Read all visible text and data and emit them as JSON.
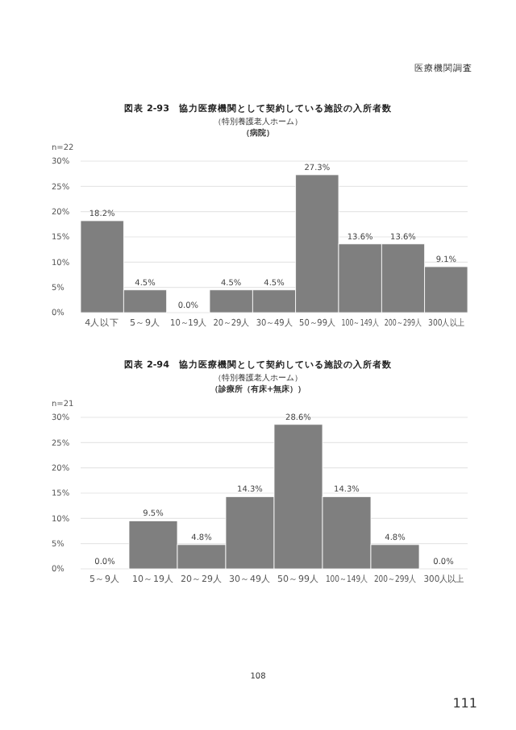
{
  "chart_data": [
    {
      "type": "bar",
      "title": "図表 2-93　協力医療機関として契約している施設の入所者数",
      "subtitle": "（特別養護老人ホーム）",
      "categories": [
        "4人以下",
        "5～9人",
        "10～19人",
        "20～29人",
        "30～49人",
        "50～99人",
        "100～149人",
        "200～299人",
        "300人以上"
      ],
      "values": [
        18.2,
        4.5,
        0.0,
        4.5,
        4.5,
        27.3,
        13.6,
        13.6,
        9.1
      ],
      "value_labels": [
        "18.2%",
        "4.5%",
        "0.0%",
        "4.5%",
        "4.5%",
        "27.3%",
        "13.6%",
        "13.6%",
        "9.1%"
      ],
      "color": "#7f7f7f",
      "ylim": [
        0,
        30
      ],
      "yticks": [
        {
          "value": 0,
          "label": "0%"
        },
        {
          "value": 5,
          "label": "5%"
        },
        {
          "value": 10,
          "label": "10%"
        },
        {
          "value": 15,
          "label": "15%"
        },
        {
          "value": 20,
          "label": "20%"
        },
        {
          "value": 25,
          "label": "25%"
        },
        {
          "value": 30,
          "label": "30%"
        }
      ],
      "grid": "y",
      "annotations": [
        "n=22",
        "（病院）",
        "医療機関調査"
      ]
    },
    {
      "type": "bar",
      "title": "図表 2-94　協力医療機関として契約している施設の入所者数",
      "subtitle": "（特別養護老人ホーム）",
      "categories": [
        "5～9人",
        "10～19人",
        "20～29人",
        "30～49人",
        "50～99人",
        "100～149人",
        "200～299人",
        "300人以上"
      ],
      "values": [
        0.0,
        9.5,
        4.8,
        14.3,
        28.6,
        14.3,
        4.8,
        0.0
      ],
      "value_labels": [
        "0.0%",
        "9.5%",
        "4.8%",
        "14.3%",
        "28.6%",
        "14.3%",
        "4.8%",
        "0.0%"
      ],
      "color": "#7f7f7f",
      "ylim": [
        0,
        30
      ],
      "yticks": [
        {
          "value": 0,
          "label": "0%"
        },
        {
          "value": 5,
          "label": "5%"
        },
        {
          "value": 10,
          "label": "10%"
        },
        {
          "value": 15,
          "label": "15%"
        },
        {
          "value": 20,
          "label": "20%"
        },
        {
          "value": 25,
          "label": "25%"
        },
        {
          "value": 30,
          "label": "30%"
        }
      ],
      "grid": "y",
      "annotations": [
        "n=21",
        "（診療所（有床+無床））",
        "108",
        "111"
      ]
    }
  ]
}
